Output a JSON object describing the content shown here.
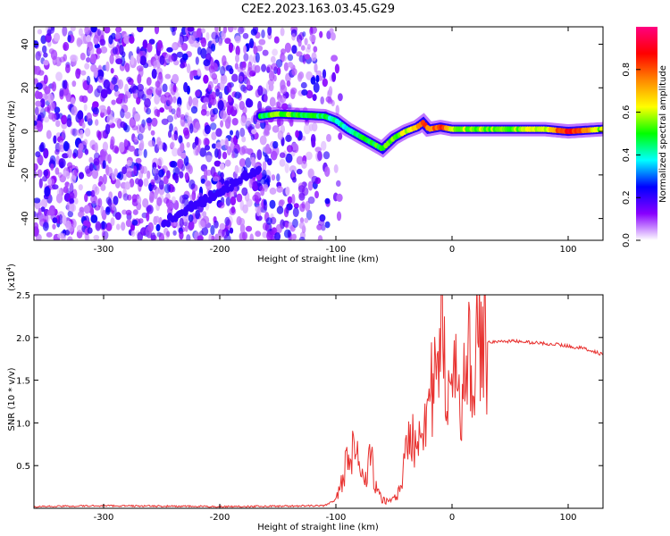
{
  "title": "C2E2.2023.163.03.45.G29",
  "chart_data": [
    {
      "type": "heatmap",
      "xlabel": "Height of straight line (km)",
      "ylabel": "Frequency (Hz)",
      "xlim": [
        -360,
        130
      ],
      "ylim": [
        -50,
        48
      ],
      "x_ticks": [
        -300,
        -200,
        -100,
        0,
        100
      ],
      "y_ticks": [
        -40,
        -20,
        0,
        20,
        40
      ],
      "colorbar": {
        "label": "Normalized spectral amplitude",
        "range": [
          0,
          1
        ],
        "ticks": [
          "0.0",
          "0.2",
          "0.4",
          "0.6",
          "0.8"
        ],
        "colors": [
          "#ffffff",
          "#8800ff",
          "#0000ff",
          "#00ffff",
          "#00ff00",
          "#ffff00",
          "#ff8800",
          "#ff0000",
          "#ff0080"
        ]
      },
      "signal_ridge": {
        "x": [
          -165,
          -150,
          -130,
          -110,
          -100,
          -90,
          -80,
          -70,
          -60,
          -50,
          -40,
          -30,
          -25,
          -20,
          -10,
          0,
          20,
          50,
          80,
          100,
          130
        ],
        "y": [
          7,
          8,
          7.5,
          7,
          5,
          1,
          -2,
          -5,
          -8,
          -3,
          0,
          2,
          4,
          1,
          2,
          1,
          1,
          1,
          1,
          0,
          1
        ],
        "amplitude": [
          0.45,
          0.55,
          0.5,
          0.45,
          0.4,
          0.42,
          0.45,
          0.5,
          0.5,
          0.55,
          0.6,
          0.65,
          0.85,
          0.7,
          0.85,
          0.6,
          0.55,
          0.55,
          0.6,
          0.9,
          0.55
        ]
      }
    },
    {
      "type": "line",
      "xlabel": "Height of straight line (km)",
      "ylabel": "SNR (10 * v/v)",
      "y_multiplier": "(x10",
      "y_multiplier_exp": "4",
      "y_multiplier_close": ")",
      "xlim": [
        -360,
        130
      ],
      "ylim": [
        0,
        2.5
      ],
      "x_ticks": [
        -300,
        -200,
        -100,
        0,
        100
      ],
      "y_ticks": [
        "0.5",
        "1.0",
        "1.5",
        "2.0",
        "2.5"
      ],
      "series": [
        {
          "color": "#e8312f",
          "x": [
            -360,
            -300,
            -200,
            -110,
            -100,
            -95,
            -90,
            -85,
            -80,
            -75,
            -70,
            -65,
            -60,
            -55,
            -50,
            -45,
            -40,
            -35,
            -30,
            -25,
            -20,
            -15,
            -10,
            -8,
            -5,
            0,
            5,
            10,
            15,
            20,
            25,
            30,
            40,
            50,
            60,
            70,
            80,
            90,
            100,
            110,
            120,
            130
          ],
          "y": [
            0.02,
            0.03,
            0.02,
            0.03,
            0.1,
            0.3,
            0.6,
            0.7,
            0.5,
            0.3,
            0.6,
            0.2,
            0.1,
            0.08,
            0.12,
            0.2,
            0.6,
            0.9,
            0.8,
            1.1,
            1.3,
            1.4,
            1.6,
            2.5,
            1.5,
            1.3,
            1.5,
            1.4,
            1.7,
            1.85,
            1.9,
            1.95,
            1.95,
            1.96,
            1.95,
            1.94,
            1.93,
            1.92,
            1.9,
            1.88,
            1.85,
            1.8
          ]
        }
      ]
    }
  ]
}
